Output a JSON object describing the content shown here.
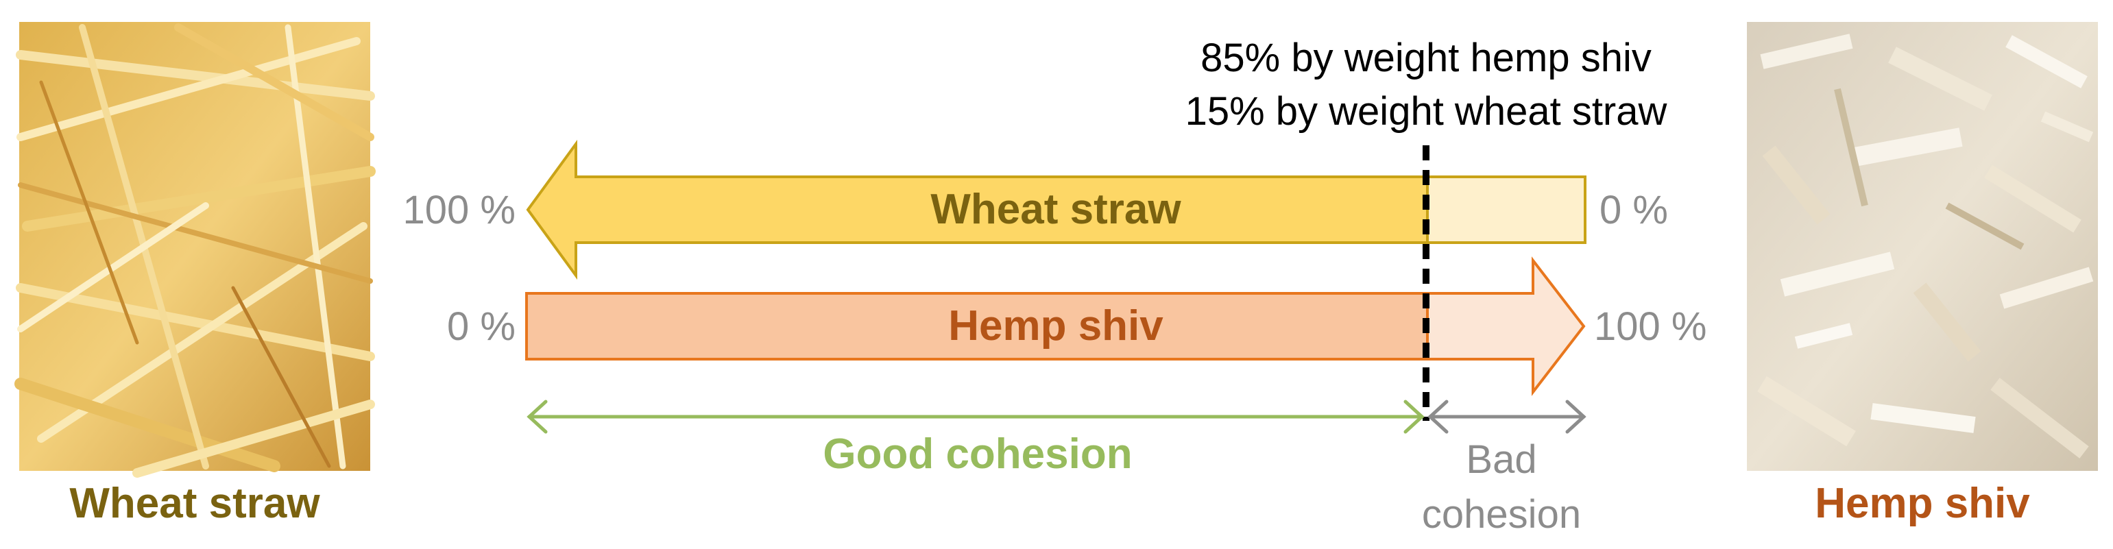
{
  "left_photo": {
    "label": "Wheat straw"
  },
  "right_photo": {
    "label": "Hemp shiv"
  },
  "mix_note": {
    "line1": "85% by weight hemp shiv",
    "line2": "15% by weight wheat straw"
  },
  "arrows": {
    "wheat": {
      "label": "Wheat straw",
      "left_pct": "100 %",
      "right_pct": "0 %"
    },
    "hemp": {
      "label": "Hemp shiv",
      "left_pct": "0 %",
      "right_pct": "100 %"
    }
  },
  "cohesion": {
    "good": "Good cohesion",
    "bad_line1": "Bad",
    "bad_line2": "cohesion"
  },
  "colors": {
    "wheat_fill": "#FDD766",
    "wheat_light": "#FEF0CC",
    "wheat_stroke": "#C9A317",
    "wheat_text": "#7A6210",
    "hemp_fill": "#F9C59F",
    "hemp_light": "#FCE6D6",
    "hemp_stroke": "#E8771E",
    "hemp_text": "#B45417",
    "good": "#97BB5D",
    "bad": "#8C8C8C"
  }
}
